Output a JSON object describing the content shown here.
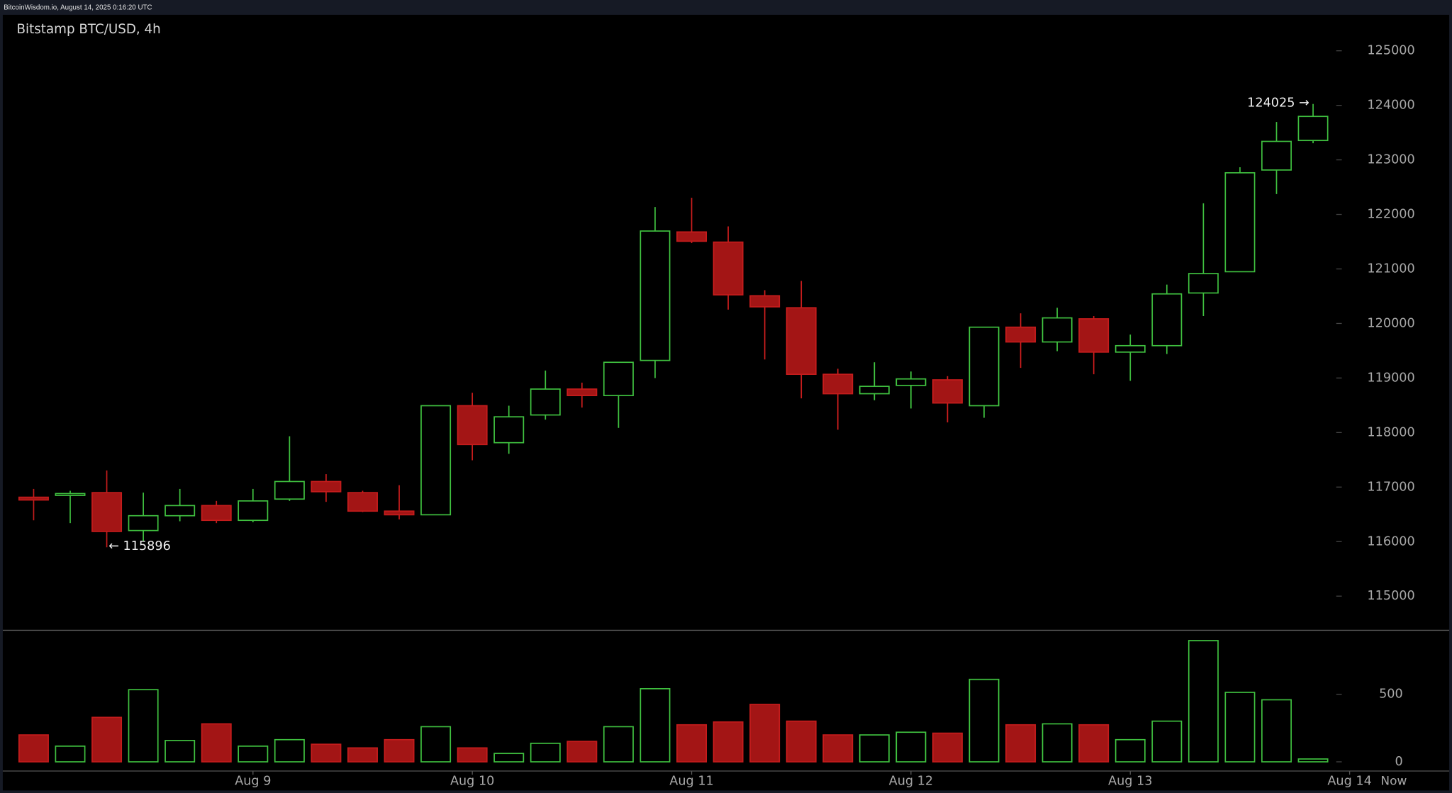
{
  "header": "BitcoinWisdom.io, August 14, 2025 0:16:20 UTC",
  "chart_data": {
    "type": "candlestick",
    "title": "Bitstamp BTC/USD, 4h",
    "open": [
      116814,
      116847,
      116898,
      116203,
      116475,
      116661,
      116390,
      116780,
      117102,
      116898,
      116559,
      116492,
      118492,
      117814,
      118322,
      118797,
      118678,
      119322,
      121678,
      121492,
      120508,
      120288,
      119068,
      118712,
      118864,
      118966,
      118492,
      119932,
      119661,
      120085,
      119475,
      119593,
      120559,
      120949,
      122814,
      123356
    ],
    "high": [
      116966,
      116932,
      117305,
      116898,
      116966,
      116746,
      116966,
      117932,
      117237,
      116932,
      117034,
      118492,
      118729,
      118492,
      119136,
      118915,
      119288,
      122136,
      122305,
      121780,
      120610,
      120780,
      119169,
      119288,
      119119,
      119034,
      119932,
      120186,
      120288,
      120136,
      119797,
      120712,
      122203,
      122864,
      123695,
      124025
    ],
    "low": [
      116390,
      116339,
      115896,
      116000,
      116373,
      116339,
      116356,
      116746,
      116729,
      116542,
      116407,
      116492,
      117492,
      117610,
      118237,
      118458,
      118085,
      118999,
      121474,
      120254,
      119339,
      118627,
      118051,
      118593,
      118441,
      118186,
      118271,
      119186,
      119492,
      119068,
      118949,
      119441,
      120136,
      120949,
      122373,
      123305
    ],
    "close": [
      116763,
      116881,
      116186,
      116475,
      116661,
      116390,
      116746,
      117102,
      116915,
      116559,
      116492,
      118492,
      117780,
      118288,
      118797,
      118678,
      119288,
      121695,
      121508,
      120525,
      120305,
      119068,
      118712,
      118847,
      118983,
      118542,
      119932,
      119661,
      120102,
      119475,
      119593,
      120542,
      120915,
      122763,
      123339,
      123797
    ],
    "volume": [
      199,
      116,
      329,
      534,
      158,
      281,
      116,
      164,
      130,
      103,
      164,
      260,
      103,
      62,
      137,
      151,
      260,
      541,
      274,
      295,
      425,
      301,
      199,
      199,
      219,
      212,
      610,
      274,
      281,
      274,
      164,
      301,
      897,
      514,
      459,
      21
    ],
    "up_color": "#3fbf3f",
    "down_color": "#a31515",
    "xlim": [
      -0.92,
      38.8
    ],
    "xticks": [
      {
        "value": 6,
        "label": "Aug 9"
      },
      {
        "value": 12,
        "label": "Aug 10"
      },
      {
        "value": 18,
        "label": "Aug 11"
      },
      {
        "value": 24,
        "label": "Aug 12"
      },
      {
        "value": 30,
        "label": "Aug 13"
      },
      {
        "value": 36,
        "label": "Aug 14"
      }
    ],
    "now_label": "Now",
    "ylim": [
      114390,
      125660
    ],
    "yticks": [
      115000,
      116000,
      117000,
      118000,
      119000,
      120000,
      121000,
      122000,
      123000,
      124000,
      125000
    ],
    "y2lim": [
      -68,
      973
    ],
    "y2ticks": [
      0,
      500
    ],
    "annotations": [
      {
        "text": "← 115896"
      },
      {
        "text": "124025 →"
      }
    ]
  }
}
